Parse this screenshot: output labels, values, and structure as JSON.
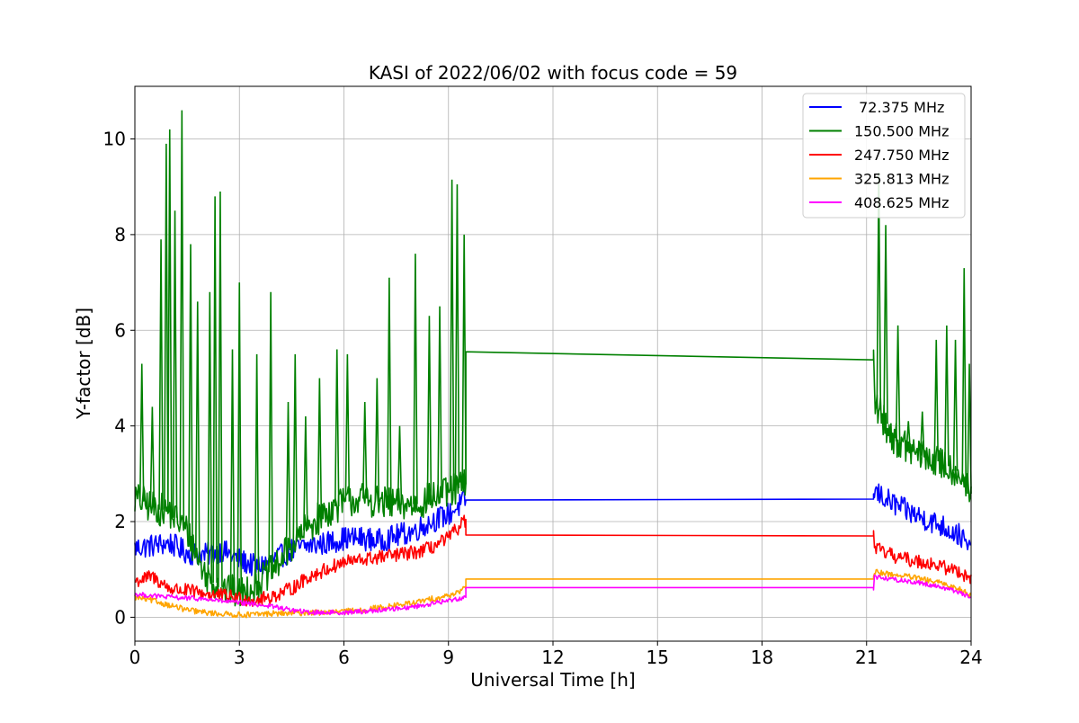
{
  "chart_data": {
    "type": "line",
    "title": "KASI of 2022/06/02 with focus code = 59",
    "xlabel": "Universal Time [h]",
    "ylabel": "Y-factor [dB]",
    "xlim": [
      0,
      24
    ],
    "ylim": [
      -0.5,
      11.1
    ],
    "xticks": [
      0,
      3,
      6,
      9,
      12,
      15,
      18,
      21,
      24
    ],
    "yticks": [
      0,
      2,
      4,
      6,
      8,
      10
    ],
    "grid": true,
    "legend_position": "top-right",
    "series": [
      {
        "name": " 72.375 MHz",
        "color": "#0000ff",
        "x": [
          0,
          0.5,
          1,
          1.5,
          2,
          2.5,
          3,
          3.5,
          4,
          4.5,
          5,
          5.5,
          6,
          6.5,
          7,
          7.5,
          8,
          8.5,
          9,
          9.5,
          9.5,
          21.2,
          21.2,
          21.7,
          22.2,
          22.7,
          23.2,
          23.7,
          24
        ],
        "y": [
          1.45,
          1.5,
          1.55,
          1.35,
          1.3,
          1.4,
          1.2,
          1.05,
          1.2,
          1.4,
          1.5,
          1.55,
          1.65,
          1.65,
          1.6,
          1.7,
          1.8,
          2.0,
          2.15,
          2.45,
          2.45,
          2.47,
          2.65,
          2.4,
          2.2,
          2.05,
          1.9,
          1.7,
          1.35
        ],
        "noise": 0.25
      },
      {
        "name": "150.500 MHz",
        "color": "#008000",
        "x": [
          0,
          0.5,
          1,
          1.5,
          2,
          2.5,
          3,
          3.5,
          4,
          4.5,
          5,
          5.5,
          6,
          6.5,
          7,
          7.5,
          8,
          8.5,
          9,
          9.5,
          9.5,
          21.2,
          21.2,
          21.7,
          22.2,
          22.7,
          23.2,
          23.7,
          24
        ],
        "y": [
          2.5,
          2.3,
          2.2,
          1.8,
          0.9,
          0.6,
          0.5,
          0.7,
          1.0,
          1.5,
          1.9,
          2.2,
          2.4,
          2.5,
          2.4,
          2.35,
          2.35,
          2.5,
          2.6,
          2.8,
          5.55,
          5.38,
          4.6,
          3.8,
          3.5,
          3.35,
          3.2,
          3.0,
          2.5
        ],
        "spikes": [
          [
            0.2,
            5.3
          ],
          [
            0.5,
            4.4
          ],
          [
            0.75,
            7.9
          ],
          [
            0.9,
            9.9
          ],
          [
            1.0,
            10.2
          ],
          [
            1.15,
            8.5
          ],
          [
            1.35,
            10.6
          ],
          [
            1.6,
            7.8
          ],
          [
            1.8,
            6.6
          ],
          [
            2.15,
            6.8
          ],
          [
            2.3,
            8.8
          ],
          [
            2.45,
            8.9
          ],
          [
            2.8,
            5.6
          ],
          [
            3.0,
            7.0
          ],
          [
            3.5,
            5.5
          ],
          [
            3.9,
            6.8
          ],
          [
            4.4,
            4.5
          ],
          [
            4.6,
            5.5
          ],
          [
            4.9,
            4.2
          ],
          [
            5.3,
            5.0
          ],
          [
            5.8,
            5.6
          ],
          [
            6.1,
            5.5
          ],
          [
            6.6,
            4.5
          ],
          [
            6.95,
            5.0
          ],
          [
            7.3,
            7.1
          ],
          [
            7.6,
            4.0
          ],
          [
            8.05,
            7.6
          ],
          [
            8.45,
            6.3
          ],
          [
            8.75,
            6.5
          ],
          [
            9.1,
            9.15
          ],
          [
            9.25,
            9.05
          ],
          [
            9.45,
            8.0
          ],
          [
            21.35,
            9.3
          ],
          [
            21.55,
            8.2
          ],
          [
            21.9,
            6.1
          ],
          [
            22.2,
            4.1
          ],
          [
            22.6,
            4.3
          ],
          [
            23.0,
            5.8
          ],
          [
            23.3,
            6.1
          ],
          [
            23.55,
            5.8
          ],
          [
            23.8,
            7.3
          ],
          [
            23.95,
            5.3
          ]
        ],
        "noise": 0.35
      },
      {
        "name": "247.750 MHz",
        "color": "#ff0000",
        "x": [
          0,
          0.5,
          1,
          1.5,
          2,
          2.5,
          3,
          3.5,
          4,
          4.5,
          5,
          5.5,
          6,
          6.5,
          7,
          7.5,
          8,
          8.5,
          9,
          9.5,
          9.5,
          21.2,
          21.2,
          21.7,
          22.2,
          22.7,
          23.2,
          23.7,
          24
        ],
        "y": [
          0.75,
          0.85,
          0.6,
          0.55,
          0.5,
          0.45,
          0.4,
          0.35,
          0.45,
          0.6,
          0.85,
          1.0,
          1.15,
          1.2,
          1.25,
          1.3,
          1.35,
          1.45,
          1.65,
          2.05,
          1.72,
          1.7,
          1.45,
          1.3,
          1.2,
          1.15,
          1.05,
          0.95,
          0.8
        ],
        "noise": 0.15
      },
      {
        "name": "325.813 MHz",
        "color": "#ffa500",
        "x": [
          0,
          0.5,
          1,
          1.5,
          2,
          2.5,
          3,
          3.5,
          4,
          4.5,
          5,
          5.5,
          6,
          6.5,
          7,
          7.5,
          8,
          8.5,
          9,
          9.5,
          9.5,
          21.2,
          21.2,
          21.7,
          22.2,
          22.7,
          23.2,
          23.7,
          24
        ],
        "y": [
          0.42,
          0.35,
          0.25,
          0.15,
          0.1,
          0.07,
          0.05,
          0.06,
          0.08,
          0.08,
          0.1,
          0.1,
          0.12,
          0.15,
          0.2,
          0.25,
          0.3,
          0.38,
          0.45,
          0.6,
          0.8,
          0.8,
          0.95,
          0.9,
          0.85,
          0.78,
          0.7,
          0.58,
          0.45
        ],
        "noise": 0.06
      },
      {
        "name": "408.625 MHz",
        "color": "#ff00ff",
        "x": [
          0,
          0.5,
          1,
          1.5,
          2,
          2.5,
          3,
          3.5,
          4,
          4.5,
          5,
          5.5,
          6,
          6.5,
          7,
          7.5,
          8,
          8.5,
          9,
          9.5,
          9.5,
          21.2,
          21.2,
          21.7,
          22.2,
          22.7,
          23.2,
          23.7,
          24
        ],
        "y": [
          0.48,
          0.45,
          0.42,
          0.4,
          0.38,
          0.34,
          0.3,
          0.27,
          0.22,
          0.15,
          0.1,
          0.1,
          0.1,
          0.12,
          0.15,
          0.18,
          0.22,
          0.28,
          0.35,
          0.42,
          0.62,
          0.62,
          0.85,
          0.8,
          0.75,
          0.7,
          0.62,
          0.52,
          0.4
        ],
        "noise": 0.05
      }
    ]
  }
}
